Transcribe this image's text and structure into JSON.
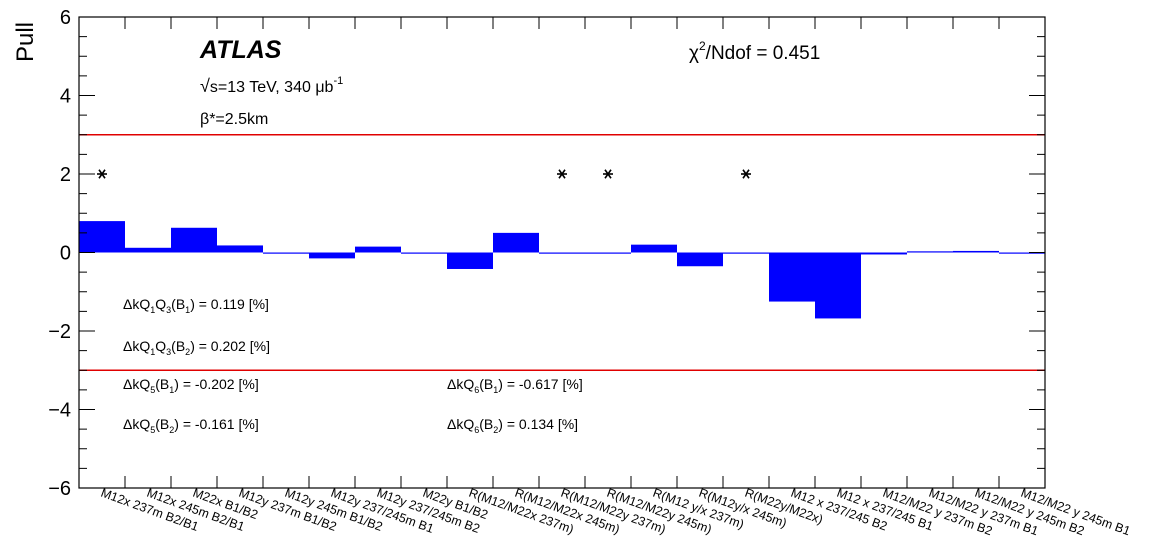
{
  "chart_data": {
    "type": "bar",
    "ylabel": "Pull",
    "ylim": [
      -6,
      6
    ],
    "yticks": [
      -6,
      -4,
      -2,
      0,
      2,
      4,
      6
    ],
    "ytick_labels": [
      "−6",
      "−4",
      "−2",
      "0",
      "2",
      "4",
      "6"
    ],
    "categories": [
      "M12x 237m B2/B1",
      "M12x 245m B2/B1",
      "M22x B1/B2",
      "M12y 237m B1/B2",
      "M12y 245m B1/B2",
      "M12y 237/245m B1",
      "M12y 237/245m B2",
      "M22y B1/B2",
      "R(M12/M22x 237m)",
      "R(M12/M22x 245m)",
      "R(M12/M22y 237m)",
      "R(M12/M22y 245m)",
      "R(M12 y/x 237m)",
      "R(M12y/x 245m)",
      "R(M22y/M22x)",
      "M12 x 237/245 B2",
      "M12 x 237/245 B1",
      "M12/M22 y 237m B2",
      "M12/M22 y 237m B1",
      "M12/M22 y 245m B2",
      "M12/M22 y 245m B1"
    ],
    "values": [
      0.8,
      0.12,
      0.63,
      0.18,
      -0.02,
      -0.15,
      0.15,
      -0.03,
      -0.42,
      0.5,
      -0.02,
      -0.02,
      0.2,
      -0.35,
      0.0,
      -1.25,
      -1.68,
      -0.05,
      0.03,
      0.04,
      -0.03
    ],
    "markers": [
      {
        "category_index": 0,
        "y": 2,
        "symbol": "*"
      },
      {
        "category_index": 10,
        "y": 2,
        "symbol": "*"
      },
      {
        "category_index": 11,
        "y": 2,
        "symbol": "*"
      },
      {
        "category_index": 14,
        "y": 2,
        "symbol": "*"
      }
    ],
    "reference_lines": [
      3,
      -3
    ],
    "reference_color": "#e00000",
    "bar_color": "#0000ff",
    "experiment_label": "ATLAS",
    "energy_label": "s=13 TeV, 340 μb",
    "energy_sqrt": "√",
    "energy_exponent": "-1",
    "beta_label": "β*=2.5km",
    "chi2_label": "χ",
    "chi2_exponent": "2",
    "chi2_rest": "/Ndof = 0.451",
    "annotations": [
      {
        "prefix": "ΔkQ",
        "sub1": "1",
        "mid": "Q",
        "sub2": "3",
        "paren": "(B",
        "sub3": "1",
        "suffix": ") = 0.119 [%]"
      },
      {
        "prefix": "ΔkQ",
        "sub1": "1",
        "mid": "Q",
        "sub2": "3",
        "paren": "(B",
        "sub3": "2",
        "suffix": ") = 0.202 [%]"
      },
      {
        "prefix": "ΔkQ",
        "sub1": "5",
        "mid": "",
        "sub2": "",
        "paren": "(B",
        "sub3": "1",
        "suffix": ") = -0.202 [%]"
      },
      {
        "prefix": "ΔkQ",
        "sub1": "5",
        "mid": "",
        "sub2": "",
        "paren": "(B",
        "sub3": "2",
        "suffix": ") = -0.161 [%]"
      },
      {
        "prefix": "ΔkQ",
        "sub1": "6",
        "mid": "",
        "sub2": "",
        "paren": "(B",
        "sub3": "1",
        "suffix": ") = -0.617 [%]"
      },
      {
        "prefix": "ΔkQ",
        "sub1": "6",
        "mid": "",
        "sub2": "",
        "paren": "(B",
        "sub3": "2",
        "suffix": ") = 0.134 [%]"
      }
    ]
  }
}
